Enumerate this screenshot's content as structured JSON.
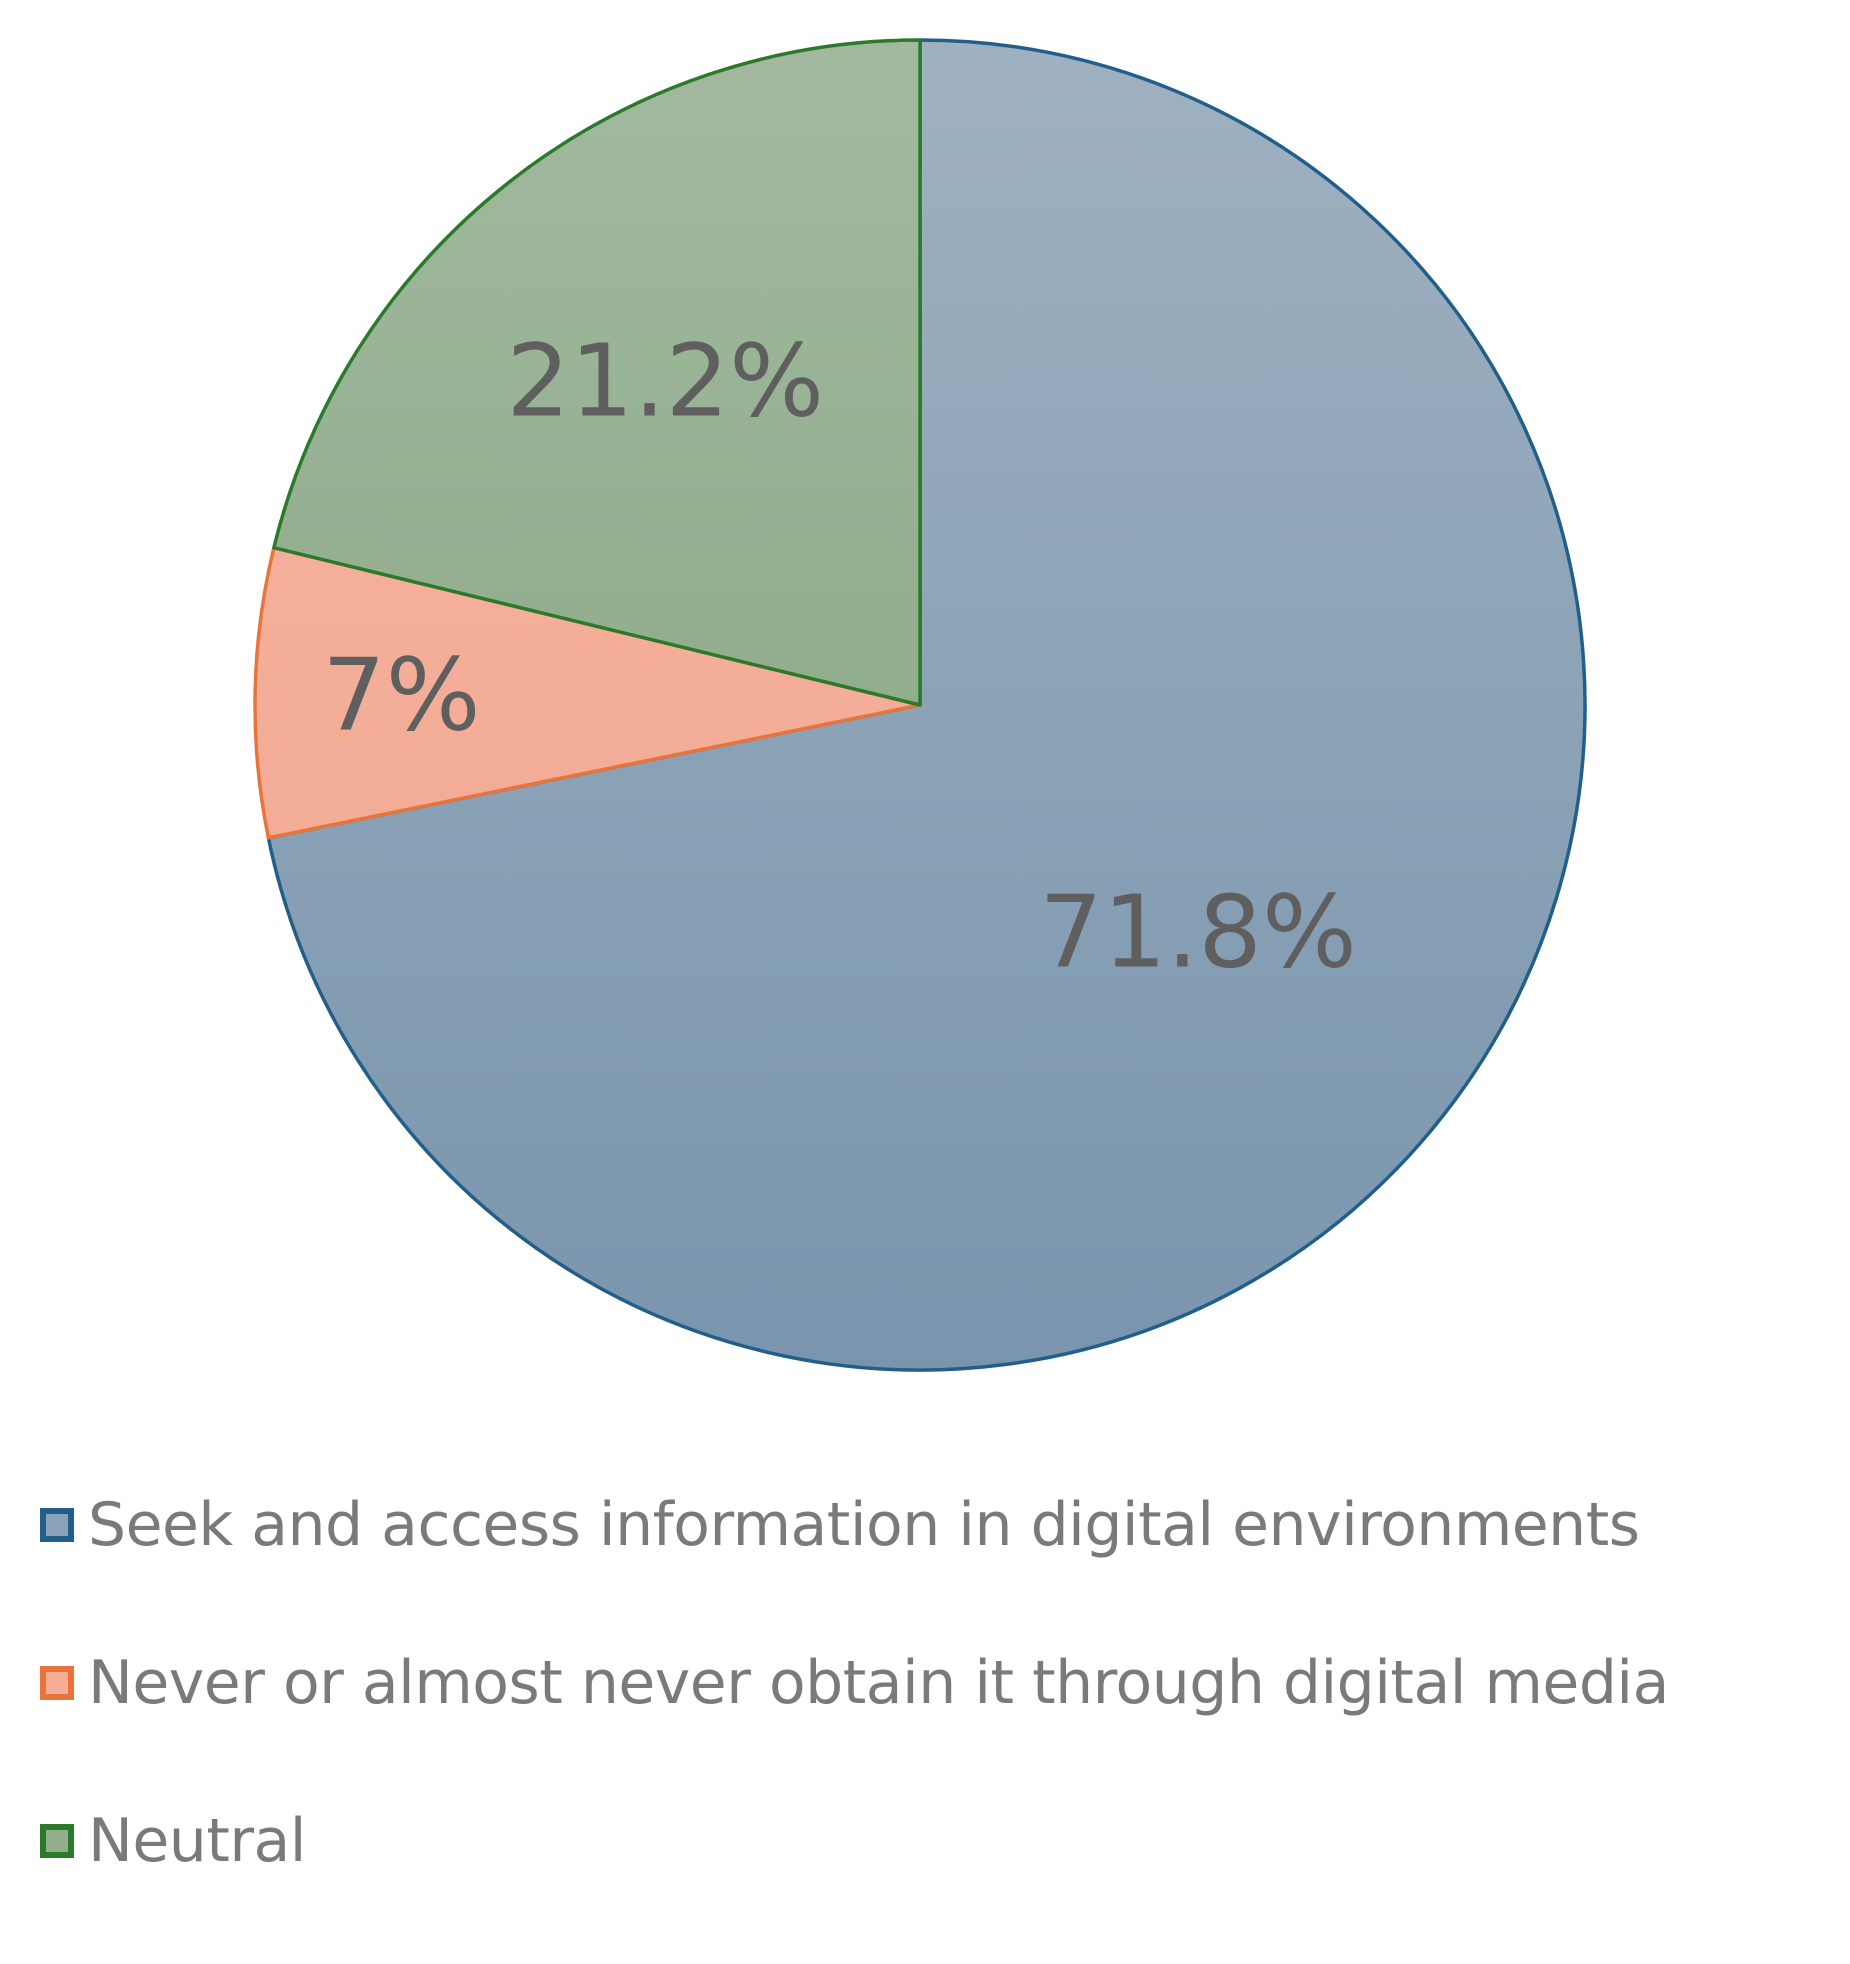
{
  "chart_data": {
    "type": "pie",
    "title": "",
    "slices": [
      {
        "name": "Seek and access information in digital environments",
        "value": 71.8,
        "label": "71.8%",
        "fill_top": "#9fb1c1",
        "fill_bottom": "#7995ad",
        "stroke": "#215f8a"
      },
      {
        "name": "Never or almost never obtain it through digital media",
        "value": 7,
        "label": "7%",
        "fill_top": "#f7b4a0",
        "fill_bottom": "#f0a68f",
        "stroke": "#e8743b"
      },
      {
        "name": "Neutral",
        "value": 21.2,
        "label": "21.2%",
        "fill_top": "#a2b99f",
        "fill_bottom": "#7fa27a",
        "stroke": "#2a7a2a"
      }
    ],
    "start": "12 o'clock",
    "direction": "clockwise",
    "legend_position": "bottom"
  },
  "legend": [
    {
      "label": "Seek and access information in digital environments",
      "color": "#215f8a",
      "fill": "#8aa3b9"
    },
    {
      "label": "Never or almost never obtain it through digital media",
      "color": "#e8743b",
      "fill": "#f4ad97"
    },
    {
      "label": "Neutral",
      "color": "#2a7a2a",
      "fill": "#92ae8d"
    }
  ]
}
